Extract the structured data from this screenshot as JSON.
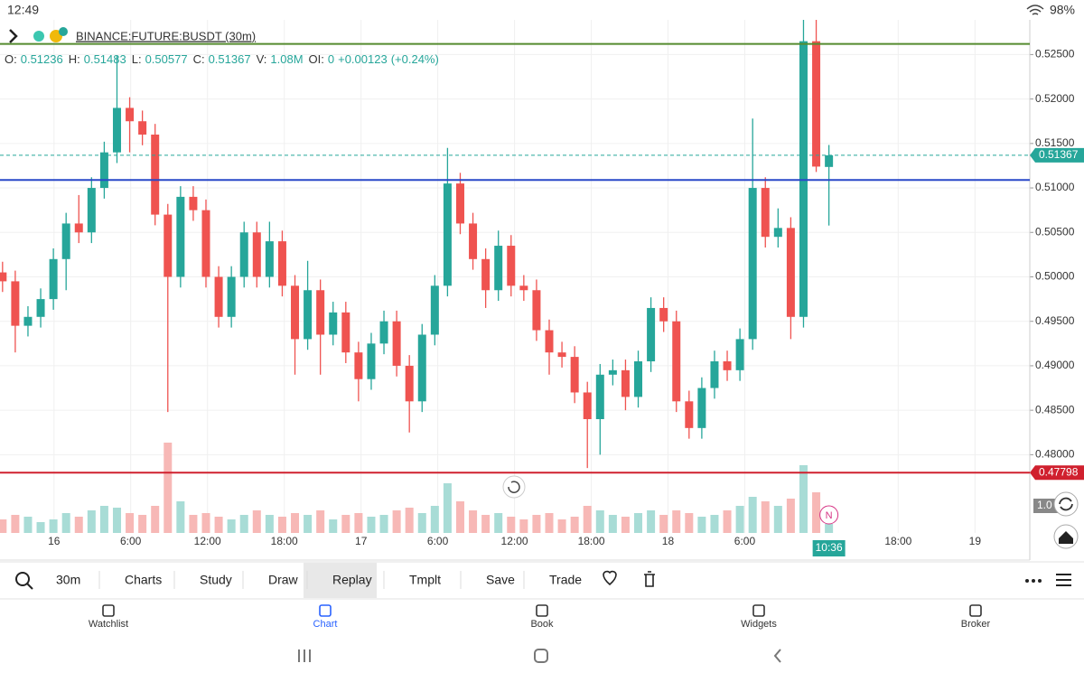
{
  "status_bar": {
    "time": "12:49",
    "battery": "98%"
  },
  "symbol": "BINANCE:FUTURE:BUSDT (30m)",
  "ohlc_legend": [
    {
      "label": "O:",
      "value": "0.51236"
    },
    {
      "label": "H:",
      "value": "0.51483"
    },
    {
      "label": "L:",
      "value": "0.50577"
    },
    {
      "label": "C:",
      "value": "0.51367"
    },
    {
      "label": "V:",
      "value": "1.08M"
    },
    {
      "label": "OI:",
      "value": "0"
    },
    {
      "label": "",
      "value": "+0.00123"
    },
    {
      "label": "",
      "value": "(+0.24%)"
    }
  ],
  "chart_data": {
    "type": "candlestick",
    "up_color": "#26a69a",
    "down_color": "#ef5350",
    "open": [
      0.5005,
      0.4995,
      0.4945,
      0.4955,
      0.4975,
      0.502,
      0.506,
      0.505,
      0.51,
      0.514,
      0.519,
      0.5175,
      0.516,
      0.507,
      0.5,
      0.509,
      0.5075,
      0.5,
      0.4955,
      0.5,
      0.505,
      0.5,
      0.504,
      0.499,
      0.493,
      0.4985,
      0.4935,
      0.496,
      0.4915,
      0.4885,
      0.4925,
      0.495,
      0.49,
      0.486,
      0.4935,
      0.499,
      0.5105,
      0.506,
      0.502,
      0.4985,
      0.5035,
      0.499,
      0.4985,
      0.494,
      0.4915,
      0.491,
      0.487,
      0.484,
      0.489,
      0.4895,
      0.4865,
      0.4905,
      0.4965,
      0.495,
      0.486,
      0.483,
      0.4875,
      0.4905,
      0.4895,
      0.493,
      0.51,
      0.5045,
      0.5055,
      0.4955,
      0.5265,
      0.51236
    ],
    "high": [
      0.5017,
      0.5007,
      0.4967,
      0.4987,
      0.5032,
      0.5072,
      0.5092,
      0.5112,
      0.5152,
      0.5249,
      0.5202,
      0.5187,
      0.5172,
      0.5082,
      0.5102,
      0.5102,
      0.5087,
      0.5012,
      0.5012,
      0.5062,
      0.5062,
      0.5062,
      0.5052,
      0.5002,
      0.5018,
      0.4997,
      0.4972,
      0.4972,
      0.4927,
      0.4937,
      0.4962,
      0.4962,
      0.4912,
      0.4947,
      0.5002,
      0.5145,
      0.5117,
      0.5072,
      0.5032,
      0.5052,
      0.5047,
      0.5002,
      0.4997,
      0.4952,
      0.4927,
      0.4922,
      0.4882,
      0.4902,
      0.4907,
      0.4907,
      0.4917,
      0.4977,
      0.4977,
      0.4962,
      0.4872,
      0.4887,
      0.4917,
      0.4917,
      0.4942,
      0.5178,
      0.5112,
      0.5077,
      0.5067,
      0.5289,
      0.5289,
      0.51483
    ],
    "low": [
      0.4983,
      0.4915,
      0.4933,
      0.4943,
      0.4963,
      0.4985,
      0.5038,
      0.5038,
      0.5088,
      0.5128,
      0.514,
      0.5148,
      0.5058,
      0.4848,
      0.4988,
      0.5063,
      0.4988,
      0.4943,
      0.4943,
      0.4988,
      0.4988,
      0.4988,
      0.4978,
      0.489,
      0.4918,
      0.489,
      0.4923,
      0.4903,
      0.486,
      0.4873,
      0.4913,
      0.4888,
      0.4825,
      0.4848,
      0.4923,
      0.4978,
      0.5048,
      0.5008,
      0.4965,
      0.4973,
      0.4978,
      0.4973,
      0.4928,
      0.489,
      0.4898,
      0.4858,
      0.4785,
      0.48,
      0.4878,
      0.485,
      0.4853,
      0.4893,
      0.4938,
      0.4848,
      0.4818,
      0.4818,
      0.4863,
      0.4883,
      0.4883,
      0.4918,
      0.5033,
      0.5033,
      0.493,
      0.4943,
      0.5118,
      0.50577
    ],
    "close": [
      0.4995,
      0.4945,
      0.4955,
      0.4975,
      0.502,
      0.506,
      0.505,
      0.51,
      0.514,
      0.519,
      0.5175,
      0.516,
      0.507,
      0.5,
      0.509,
      0.5075,
      0.5,
      0.4955,
      0.5,
      0.505,
      0.5,
      0.504,
      0.499,
      0.493,
      0.4985,
      0.4935,
      0.496,
      0.4915,
      0.4885,
      0.4925,
      0.495,
      0.49,
      0.486,
      0.4935,
      0.499,
      0.5105,
      0.506,
      0.502,
      0.4985,
      0.5035,
      0.499,
      0.4985,
      0.494,
      0.4915,
      0.491,
      0.487,
      0.484,
      0.489,
      0.4895,
      0.4865,
      0.4905,
      0.4965,
      0.495,
      0.486,
      0.483,
      0.4875,
      0.4905,
      0.4895,
      0.493,
      0.51,
      0.5045,
      0.5055,
      0.4955,
      0.5265,
      0.5124,
      0.51367
    ],
    "volume": [
      0.15,
      0.2,
      0.18,
      0.12,
      0.15,
      0.22,
      0.18,
      0.25,
      0.3,
      0.28,
      0.22,
      0.2,
      0.3,
      1.0,
      0.35,
      0.2,
      0.22,
      0.18,
      0.15,
      0.2,
      0.25,
      0.2,
      0.18,
      0.22,
      0.2,
      0.25,
      0.15,
      0.2,
      0.22,
      0.18,
      0.2,
      0.25,
      0.28,
      0.22,
      0.3,
      0.55,
      0.35,
      0.25,
      0.2,
      0.22,
      0.18,
      0.15,
      0.2,
      0.22,
      0.15,
      0.18,
      0.3,
      0.25,
      0.2,
      0.18,
      0.22,
      0.25,
      0.2,
      0.25,
      0.22,
      0.18,
      0.2,
      0.25,
      0.3,
      0.4,
      0.35,
      0.3,
      0.38,
      0.75,
      0.45,
      0.1
    ],
    "volume_ylim": [
      0,
      1.3
    ],
    "volume_label": "1.0",
    "xlim": [
      -0.2,
      80.8
    ],
    "xticks": [
      {
        "value": 4.05,
        "label": "16"
      },
      {
        "value": 10.08,
        "label": "6:00"
      },
      {
        "value": 16.12,
        "label": "12:00"
      },
      {
        "value": 22.16,
        "label": "18:00"
      },
      {
        "value": 28.2,
        "label": "17"
      },
      {
        "value": 34.23,
        "label": "6:00"
      },
      {
        "value": 40.27,
        "label": "12:00"
      },
      {
        "value": 46.31,
        "label": "18:00"
      },
      {
        "value": 52.34,
        "label": "18"
      },
      {
        "value": 58.38,
        "label": "6:00"
      },
      {
        "value": 70.45,
        "label": "18:00"
      },
      {
        "value": 76.49,
        "label": "19"
      }
    ],
    "current_time": {
      "value": 65,
      "label": "10:36"
    },
    "ylim": [
      0.4712,
      0.5289
    ],
    "yticks": [
      {
        "value": 0.48,
        "label": "0.48000"
      },
      {
        "value": 0.485,
        "label": "0.48500"
      },
      {
        "value": 0.49,
        "label": "0.49000"
      },
      {
        "value": 0.495,
        "label": "0.49500"
      },
      {
        "value": 0.5,
        "label": "0.50000"
      },
      {
        "value": 0.505,
        "label": "0.50500"
      },
      {
        "value": 0.51,
        "label": "0.51000"
      },
      {
        "value": 0.515,
        "label": "0.51500"
      },
      {
        "value": 0.52,
        "label": "0.52000"
      },
      {
        "value": 0.525,
        "label": "0.52500"
      }
    ],
    "grid": true,
    "current_price": 0.51367,
    "levels": [
      {
        "value": 0.5262,
        "color": "#558b2f"
      },
      {
        "value": 0.5109,
        "color": "#2948c8"
      },
      {
        "value": 0.47798,
        "color": "#d0202e",
        "tag": true
      }
    ]
  },
  "toolbar": [
    "30m",
    "Charts",
    "Study",
    "Draw",
    "Replay",
    "Tmplt",
    "Save",
    "Trade"
  ],
  "nav": [
    "Watchlist",
    "Chart",
    "Book",
    "Widgets",
    "Broker"
  ],
  "event_marker": "N"
}
